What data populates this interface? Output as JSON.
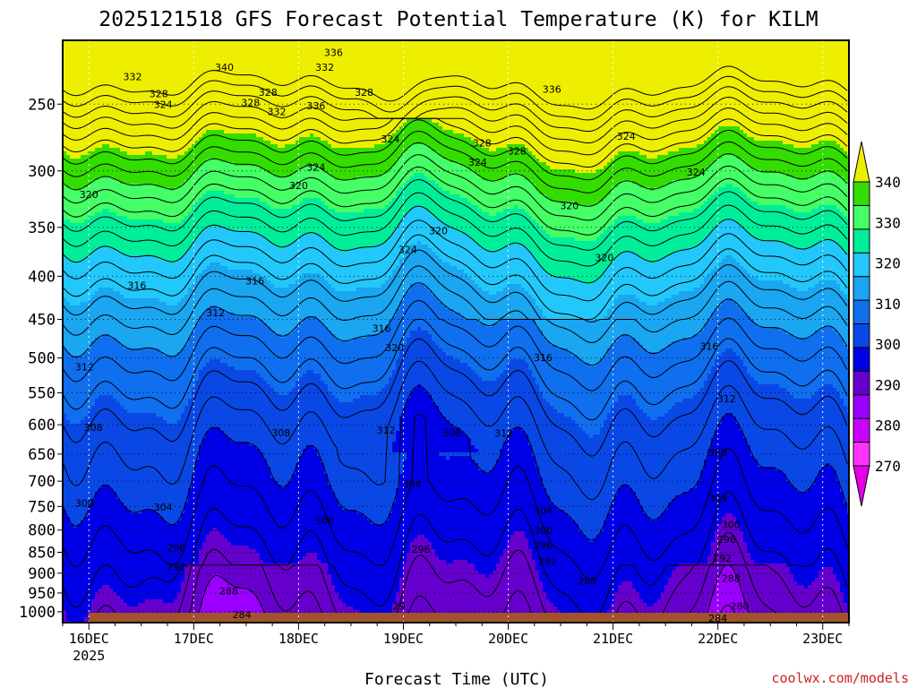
{
  "chart_data": {
    "type": "heatmap",
    "title": "2025121518 GFS Forecast Potential Temperature (K) for KILM",
    "xlabel": "Forecast Time (UTC)",
    "ylabel": "",
    "y_scale": "log",
    "y_inverted": true,
    "ylim": [
      1030,
      210
    ],
    "y_ticks": [
      250,
      300,
      350,
      400,
      450,
      500,
      550,
      600,
      650,
      700,
      750,
      800,
      850,
      900,
      950,
      1000
    ],
    "x_ticks": [
      {
        "t": 6,
        "label": "16DEC",
        "sub": "2025"
      },
      {
        "t": 30,
        "label": "17DEC"
      },
      {
        "t": 54,
        "label": "18DEC"
      },
      {
        "t": 78,
        "label": "19DEC"
      },
      {
        "t": 102,
        "label": "20DEC"
      },
      {
        "t": 126,
        "label": "21DEC"
      },
      {
        "t": 150,
        "label": "22DEC"
      },
      {
        "t": 174,
        "label": "23DEC"
      }
    ],
    "xlim": [
      0,
      180
    ],
    "grid": true,
    "colorbar": {
      "position": "right",
      "levels": [
        270,
        280,
        290,
        300,
        310,
        320,
        330,
        340
      ],
      "colors": [
        "#e600e6",
        "#ff33ff",
        "#cc00ff",
        "#9900ff",
        "#6600cc",
        "#0000e6",
        "#0a48e6",
        "#0f6fee",
        "#1aa6f0",
        "#22c8fb",
        "#00ee99",
        "#44ff66",
        "#33dd00",
        "#eeee00"
      ],
      "extend": "both"
    },
    "contour_interval": 2,
    "contour_labels": [
      {
        "t": 16,
        "p": 232,
        "v": "332"
      },
      {
        "t": 37,
        "p": 226,
        "v": "340"
      },
      {
        "t": 62,
        "p": 217,
        "v": "336"
      },
      {
        "t": 60,
        "p": 226,
        "v": "332"
      },
      {
        "t": 49,
        "p": 255,
        "v": "332"
      },
      {
        "t": 69,
        "p": 242,
        "v": "328"
      },
      {
        "t": 22,
        "p": 243,
        "v": "328"
      },
      {
        "t": 23,
        "p": 250,
        "v": "324"
      },
      {
        "t": 47,
        "p": 242,
        "v": "328"
      },
      {
        "t": 43,
        "p": 249,
        "v": "328"
      },
      {
        "t": 58,
        "p": 251,
        "v": "336"
      },
      {
        "t": 75,
        "p": 275,
        "v": "324"
      },
      {
        "t": 96,
        "p": 278,
        "v": "328"
      },
      {
        "t": 104,
        "p": 284,
        "v": "328"
      },
      {
        "t": 95,
        "p": 293,
        "v": "324"
      },
      {
        "t": 112,
        "p": 240,
        "v": "336"
      },
      {
        "t": 129,
        "p": 273,
        "v": "324"
      },
      {
        "t": 145,
        "p": 301,
        "v": "324"
      },
      {
        "t": 116,
        "p": 330,
        "v": "320"
      },
      {
        "t": 124,
        "p": 380,
        "v": "320"
      },
      {
        "t": 86,
        "p": 353,
        "v": "320"
      },
      {
        "t": 54,
        "p": 312,
        "v": "320"
      },
      {
        "t": 58,
        "p": 297,
        "v": "324"
      },
      {
        "t": 6,
        "p": 320,
        "v": "320"
      },
      {
        "t": 79,
        "p": 372,
        "v": "324"
      },
      {
        "t": 17,
        "p": 410,
        "v": "316"
      },
      {
        "t": 44,
        "p": 405,
        "v": "316"
      },
      {
        "t": 35,
        "p": 442,
        "v": "312"
      },
      {
        "t": 73,
        "p": 461,
        "v": "316"
      },
      {
        "t": 76,
        "p": 486,
        "v": "320"
      },
      {
        "t": 110,
        "p": 499,
        "v": "316"
      },
      {
        "t": 148,
        "p": 484,
        "v": "316"
      },
      {
        "t": 152,
        "p": 559,
        "v": "312"
      },
      {
        "t": 5,
        "p": 512,
        "v": "312"
      },
      {
        "t": 7,
        "p": 604,
        "v": "308"
      },
      {
        "t": 50,
        "p": 613,
        "v": "308"
      },
      {
        "t": 74,
        "p": 609,
        "v": "312"
      },
      {
        "t": 89,
        "p": 613,
        "v": "308"
      },
      {
        "t": 101,
        "p": 614,
        "v": "312"
      },
      {
        "t": 150,
        "p": 647,
        "v": "308"
      },
      {
        "t": 150,
        "p": 733,
        "v": "304"
      },
      {
        "t": 80,
        "p": 706,
        "v": "304"
      },
      {
        "t": 23,
        "p": 751,
        "v": "304"
      },
      {
        "t": 110,
        "p": 759,
        "v": "304"
      },
      {
        "t": 5,
        "p": 743,
        "v": "300"
      },
      {
        "t": 60,
        "p": 779,
        "v": "300"
      },
      {
        "t": 110,
        "p": 801,
        "v": "300"
      },
      {
        "t": 153,
        "p": 788,
        "v": "300"
      },
      {
        "t": 26,
        "p": 840,
        "v": "296"
      },
      {
        "t": 82,
        "p": 843,
        "v": "296"
      },
      {
        "t": 110,
        "p": 834,
        "v": "296"
      },
      {
        "t": 152,
        "p": 820,
        "v": "296"
      },
      {
        "t": 26,
        "p": 884,
        "v": "292"
      },
      {
        "t": 111,
        "p": 871,
        "v": "292"
      },
      {
        "t": 151,
        "p": 864,
        "v": "292"
      },
      {
        "t": 38,
        "p": 944,
        "v": "288"
      },
      {
        "t": 120,
        "p": 919,
        "v": "288"
      },
      {
        "t": 153,
        "p": 912,
        "v": "288"
      },
      {
        "t": 41,
        "p": 1007,
        "v": "284"
      },
      {
        "t": 77,
        "p": 985,
        "v": "29"
      },
      {
        "t": 155,
        "p": 985,
        "v": "280"
      },
      {
        "t": 150,
        "p": 1018,
        "v": "284"
      }
    ]
  },
  "watermark": "coolwx.com/models"
}
